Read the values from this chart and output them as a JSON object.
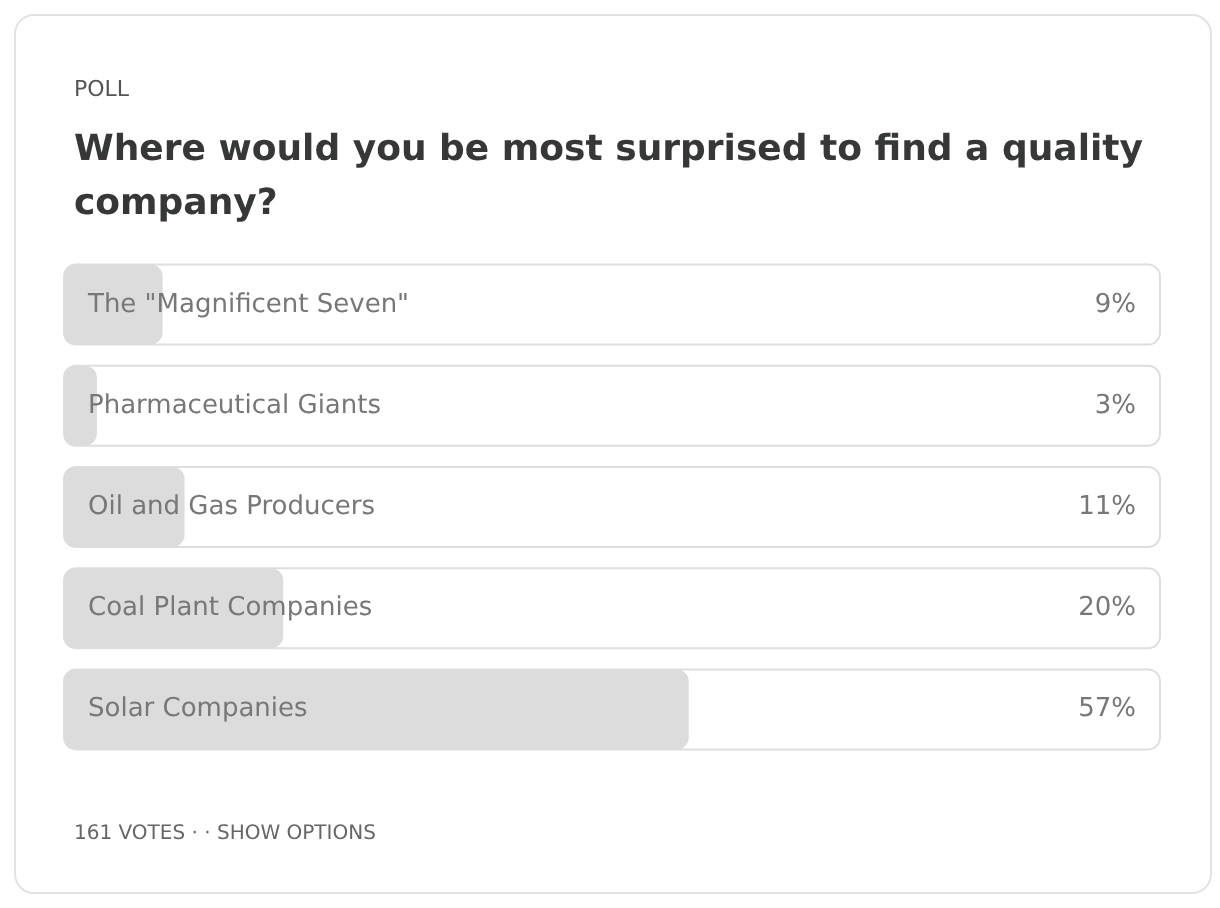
{
  "chart_data": {
    "type": "bar",
    "orientation": "horizontal",
    "subtitle": "POLL",
    "title": "Where would you be most surprised to find a quality company?",
    "categories": [
      "The \"Magnificent Seven\"",
      "Pharmaceutical Giants",
      "Oil and Gas Producers",
      "Coal Plant Companies",
      "Solar Companies"
    ],
    "values": [
      9,
      3,
      11,
      20,
      57
    ],
    "value_labels": [
      "9%",
      "3%",
      "11%",
      "20%",
      "57%"
    ],
    "color": "#dcdcdc",
    "xlim": [
      0,
      100
    ],
    "tick_labels": "y",
    "annotations": [
      "161 VOTES · · SHOW OPTIONS"
    ]
  }
}
